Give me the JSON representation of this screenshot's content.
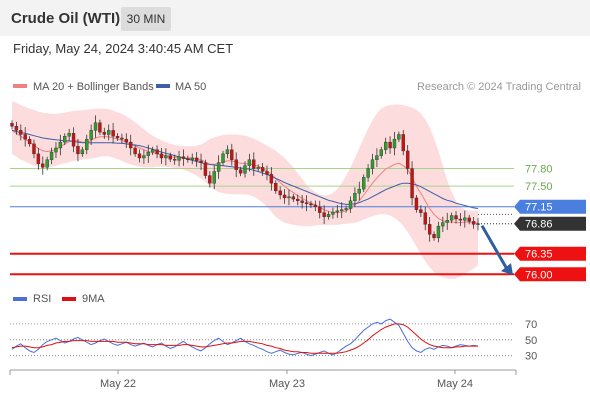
{
  "header": {
    "instrument": "Crude Oil (WTI)",
    "timeframe": "30 MIN"
  },
  "datetime": "Friday, May 24, 2024 3:40:45 AM CET",
  "legend": {
    "ma20_label": "MA 20 + Bollinger Bands",
    "ma50_label": "MA 50",
    "copyright": "Research © 2024 Trading Central"
  },
  "colors": {
    "candle_up": "#2e9f2e",
    "candle_down": "#cc1111",
    "bollinger_fill": "#fbd6d6",
    "ma20": "#f08080",
    "ma50": "#3b5fa8",
    "level_blue": "#4a7fe0",
    "level_green": "#a8d48a",
    "level_red": "#ee1111",
    "rsi_line": "#4a6fd8",
    "rsi_ma": "#dd1111",
    "arrow": "#2d5ea0"
  },
  "rsi_legend": {
    "rsi_label": "RSI",
    "ma_label": "9MA"
  },
  "chart_data": [
    {
      "type": "candlestick",
      "title": "Crude Oil (WTI)",
      "x_ticks": [
        "May 22",
        "May 23",
        "May 24"
      ],
      "y_range": [
        75.8,
        78.95
      ],
      "levels": [
        {
          "value": 77.8,
          "label": "77.80",
          "kind": "resistance"
        },
        {
          "value": 77.5,
          "label": "77.50",
          "kind": "resistance"
        },
        {
          "value": 77.15,
          "label": "77.15",
          "kind": "pivot"
        },
        {
          "value": 76.35,
          "label": "76.35",
          "kind": "target"
        },
        {
          "value": 76.0,
          "label": "76.00",
          "kind": "target"
        }
      ],
      "last_price": {
        "value": 76.86,
        "label": "76.86"
      },
      "close_series": [
        78.52,
        78.45,
        78.38,
        78.3,
        78.22,
        78.05,
        77.88,
        77.82,
        77.95,
        78.08,
        78.15,
        78.25,
        78.35,
        78.4,
        78.18,
        78.05,
        78.12,
        78.3,
        78.45,
        78.58,
        78.42,
        78.38,
        78.45,
        78.35,
        78.32,
        78.3,
        78.25,
        78.15,
        78.05,
        77.98,
        78.02,
        78.08,
        78.12,
        78.05,
        77.98,
        78.02,
        77.96,
        77.94,
        78.0,
        77.97,
        77.95,
        77.98,
        77.93,
        77.9,
        77.68,
        77.55,
        77.75,
        77.9,
        78.05,
        78.12,
        77.95,
        77.78,
        77.72,
        77.85,
        77.95,
        77.8,
        77.82,
        77.75,
        77.7,
        77.55,
        77.42,
        77.35,
        77.3,
        77.32,
        77.28,
        77.25,
        77.22,
        77.2,
        77.18,
        77.15,
        77.05,
        76.98,
        77.02,
        77.06,
        77.08,
        77.1,
        77.12,
        77.25,
        77.38,
        77.45,
        77.65,
        77.8,
        77.95,
        78.02,
        78.12,
        78.25,
        78.15,
        78.3,
        78.38,
        78.1,
        77.8,
        77.3,
        77.1,
        77.05,
        76.85,
        76.68,
        76.62,
        76.82,
        76.88,
        76.92,
        77.0,
        76.94,
        76.92,
        76.96,
        76.9,
        76.85,
        76.86
      ],
      "ma20": [
        78.45,
        78.4,
        78.35,
        78.3,
        78.25,
        78.2,
        78.14,
        78.1,
        78.09,
        78.1,
        78.13,
        78.17,
        78.22,
        78.26,
        78.28,
        78.27,
        78.25,
        78.25,
        78.28,
        78.32,
        78.34,
        78.34,
        78.34,
        78.32,
        78.3,
        78.28,
        78.25,
        78.22,
        78.19,
        78.15,
        78.12,
        78.09,
        78.07,
        78.05,
        78.03,
        78.02,
        78.0,
        77.99,
        77.99,
        77.98,
        77.98,
        77.98,
        77.97,
        77.95,
        77.91,
        77.87,
        77.87,
        77.89,
        77.91,
        77.93,
        77.93,
        77.91,
        77.89,
        77.88,
        77.88,
        77.86,
        77.84,
        77.8,
        77.76,
        77.7,
        77.63,
        77.56,
        77.5,
        77.44,
        77.39,
        77.34,
        77.29,
        77.25,
        77.21,
        77.18,
        77.14,
        77.1,
        77.07,
        77.05,
        77.05,
        77.06,
        77.08,
        77.12,
        77.18,
        77.25,
        77.35,
        77.45,
        77.55,
        77.64,
        77.72,
        77.79,
        77.83,
        77.87,
        77.89,
        77.85,
        77.78,
        77.65,
        77.5,
        77.38,
        77.25,
        77.12,
        77.02,
        76.95,
        76.91,
        76.89,
        76.89,
        76.88,
        76.88,
        76.89,
        76.89,
        76.88,
        76.87
      ],
      "ma50": [
        78.45,
        78.43,
        78.41,
        78.4,
        78.38,
        78.36,
        78.34,
        78.32,
        78.31,
        78.3,
        78.29,
        78.28,
        78.27,
        78.27,
        78.26,
        78.25,
        78.24,
        78.24,
        78.24,
        78.24,
        78.24,
        78.24,
        78.24,
        78.24,
        78.23,
        78.23,
        78.22,
        78.21,
        78.2,
        78.19,
        78.17,
        78.15,
        78.13,
        78.1,
        78.08,
        78.06,
        78.04,
        78.02,
        78.0,
        77.98,
        77.96,
        77.94,
        77.92,
        77.9,
        77.88,
        77.87,
        77.86,
        77.85,
        77.85,
        77.84,
        77.83,
        77.82,
        77.81,
        77.8,
        77.79,
        77.77,
        77.75,
        77.72,
        77.7,
        77.67,
        77.63,
        77.6,
        77.56,
        77.53,
        77.5,
        77.47,
        77.44,
        77.41,
        77.38,
        77.35,
        77.32,
        77.29,
        77.26,
        77.24,
        77.22,
        77.2,
        77.19,
        77.19,
        77.2,
        77.22,
        77.25,
        77.28,
        77.32,
        77.36,
        77.4,
        77.44,
        77.47,
        77.5,
        77.53,
        77.55,
        77.55,
        77.54,
        77.52,
        77.49,
        77.45,
        77.41,
        77.37,
        77.33,
        77.29,
        77.26,
        77.24,
        77.21,
        77.19,
        77.17,
        77.15,
        77.13,
        77.12
      ],
      "bollinger_upper": [
        78.95,
        78.92,
        78.88,
        78.85,
        78.82,
        78.8,
        78.77,
        78.75,
        78.74,
        78.73,
        78.73,
        78.74,
        78.75,
        78.77,
        78.78,
        78.79,
        78.79,
        78.8,
        78.81,
        78.82,
        78.82,
        78.82,
        78.81,
        78.79,
        78.76,
        78.73,
        78.69,
        78.64,
        78.59,
        78.53,
        78.47,
        78.41,
        78.36,
        78.32,
        78.28,
        78.25,
        78.22,
        78.2,
        78.19,
        78.18,
        78.18,
        78.18,
        78.19,
        78.21,
        78.25,
        78.3,
        78.33,
        78.35,
        78.37,
        78.38,
        78.38,
        78.38,
        78.37,
        78.36,
        78.34,
        78.31,
        78.27,
        78.23,
        78.19,
        78.15,
        78.1,
        78.04,
        77.98,
        77.9,
        77.82,
        77.72,
        77.62,
        77.52,
        77.45,
        77.4,
        77.36,
        77.34,
        77.35,
        77.38,
        77.45,
        77.55,
        77.68,
        77.82,
        77.98,
        78.15,
        78.32,
        78.48,
        78.62,
        78.74,
        78.82,
        78.86,
        78.88,
        78.89,
        78.89,
        78.88,
        78.86,
        78.84,
        78.8,
        78.74,
        78.64,
        78.5,
        78.32,
        78.1,
        77.85,
        77.6,
        77.4,
        77.25,
        77.15,
        77.1,
        77.08,
        77.08,
        77.08
      ],
      "bollinger_lower": [
        78.05,
        78.0,
        77.95,
        77.92,
        77.88,
        77.85,
        77.83,
        77.82,
        77.82,
        77.83,
        77.85,
        77.87,
        77.89,
        77.91,
        77.93,
        77.94,
        77.95,
        77.96,
        77.97,
        77.98,
        78.0,
        78.01,
        78.01,
        77.99,
        77.96,
        77.93,
        77.9,
        77.87,
        77.85,
        77.83,
        77.82,
        77.82,
        77.82,
        77.83,
        77.83,
        77.83,
        77.82,
        77.81,
        77.8,
        77.78,
        77.75,
        77.72,
        77.68,
        77.63,
        77.57,
        77.5,
        77.44,
        77.4,
        77.38,
        77.37,
        77.36,
        77.36,
        77.36,
        77.36,
        77.35,
        77.32,
        77.28,
        77.22,
        77.15,
        77.06,
        76.98,
        76.92,
        76.88,
        76.86,
        76.84,
        76.83,
        76.82,
        76.82,
        76.82,
        76.83,
        76.84,
        76.84,
        76.84,
        76.84,
        76.84,
        76.85,
        76.86,
        76.87,
        76.88,
        76.9,
        76.93,
        76.96,
        76.99,
        77.01,
        77.02,
        77.02,
        77.0,
        76.96,
        76.9,
        76.82,
        76.72,
        76.6,
        76.47,
        76.34,
        76.22,
        76.12,
        76.04,
        75.98,
        75.95,
        75.93,
        75.92,
        75.93,
        75.96,
        76.0,
        76.05,
        76.1,
        76.15
      ]
    },
    {
      "type": "line",
      "title": "RSI",
      "y_ticks": [
        70,
        50,
        30
      ],
      "y_range": [
        17,
        85
      ],
      "series": [
        {
          "name": "RSI",
          "values": [
            38,
            42,
            45,
            40,
            36,
            34,
            38,
            44,
            48,
            50,
            52,
            49,
            46,
            48,
            51,
            53,
            50,
            47,
            44,
            46,
            49,
            51,
            48,
            45,
            43,
            45,
            47,
            44,
            42,
            44,
            46,
            43,
            41,
            44,
            46,
            42,
            39,
            41,
            45,
            48,
            44,
            41,
            38,
            36,
            40,
            45,
            49,
            52,
            48,
            44,
            46,
            49,
            52,
            48,
            45,
            43,
            40,
            38,
            35,
            33,
            35,
            37,
            34,
            32,
            31,
            33,
            34,
            32,
            30,
            32,
            34,
            36,
            33,
            31,
            34,
            38,
            42,
            45,
            50,
            56,
            62,
            66,
            70,
            72,
            70,
            74,
            76,
            72,
            68,
            58,
            48,
            40,
            36,
            34,
            38,
            40,
            38,
            41,
            43,
            42,
            40,
            42,
            44,
            43,
            42,
            43,
            42
          ]
        },
        {
          "name": "9MA",
          "values": [
            40,
            41,
            42,
            42,
            41,
            40,
            40,
            41,
            43,
            44,
            46,
            47,
            48,
            48,
            49,
            49,
            49,
            49,
            48,
            48,
            48,
            48,
            48,
            48,
            47,
            47,
            47,
            46,
            45,
            45,
            45,
            44,
            44,
            44,
            44,
            43,
            43,
            43,
            43,
            44,
            44,
            43,
            42,
            41,
            41,
            42,
            43,
            44,
            45,
            46,
            46,
            47,
            48,
            48,
            48,
            47,
            46,
            45,
            43,
            42,
            40,
            39,
            37,
            36,
            35,
            35,
            34,
            34,
            33,
            33,
            33,
            33,
            33,
            33,
            33,
            34,
            35,
            37,
            39,
            42,
            46,
            50,
            55,
            59,
            63,
            66,
            68,
            70,
            70,
            69,
            66,
            61,
            56,
            51,
            47,
            44,
            42,
            41,
            40,
            40,
            40,
            41,
            41,
            42,
            42,
            42,
            42
          ]
        }
      ]
    }
  ]
}
